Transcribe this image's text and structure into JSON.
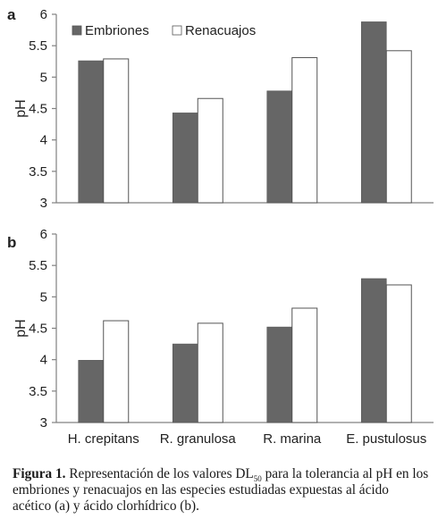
{
  "chart_data": [
    {
      "type": "bar",
      "panel": "a",
      "categories": [
        "H. crepitans",
        "R. granulosa",
        "R. marina",
        "E. pustulosus"
      ],
      "series": [
        {
          "name": "Embriones",
          "values": [
            5.26,
            4.43,
            4.78,
            5.88
          ],
          "color": "#666666"
        },
        {
          "name": "Renacuajos",
          "values": [
            5.29,
            4.66,
            5.31,
            5.42
          ],
          "color": "#ffffff"
        }
      ],
      "ylabel": "pH",
      "ylim": [
        3,
        6
      ],
      "yticks": [
        "3",
        "3.5",
        "4",
        "4.5",
        "5",
        "5.5",
        "6"
      ],
      "legend": "top-left",
      "grid": false
    },
    {
      "type": "bar",
      "panel": "b",
      "categories": [
        "H. crepitans",
        "R. granulosa",
        "R. marina",
        "E. pustulosus"
      ],
      "series": [
        {
          "name": "Embriones",
          "values": [
            3.99,
            4.25,
            4.52,
            5.29
          ],
          "color": "#666666"
        },
        {
          "name": "Renacuajos",
          "values": [
            4.62,
            4.58,
            4.82,
            5.19
          ],
          "color": "#ffffff"
        }
      ],
      "ylabel": "pH",
      "ylim": [
        3,
        6
      ],
      "yticks": [
        "3",
        "3.5",
        "4",
        "4.5",
        "5",
        "5.5",
        "6"
      ],
      "legend": "none",
      "grid": false
    }
  ],
  "caption": {
    "label": "Figura 1.",
    "text_before": " Representación de los valores DL",
    "subscript": "50",
    "text_after": " para la tolerancia al pH en los embriones y renacuajos en las especies estudiadas expuestas al ácido acético (a) y ácido clorhídrico (b)."
  }
}
